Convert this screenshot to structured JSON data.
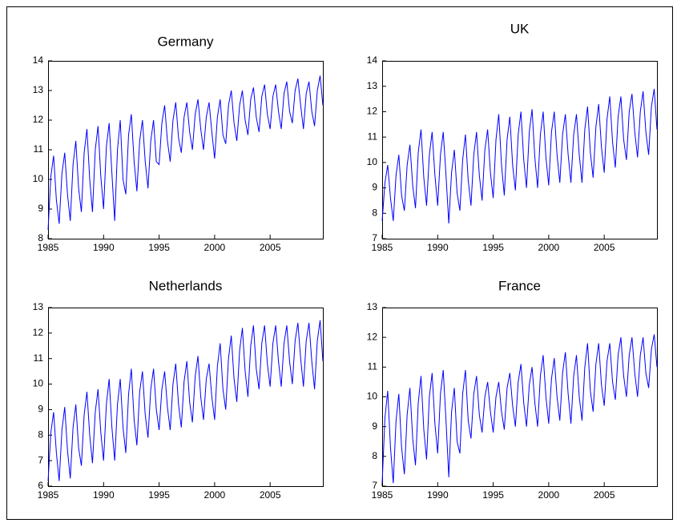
{
  "chart_data": [
    {
      "type": "line",
      "title": "Germany",
      "color": "#0000ff",
      "x": [
        1985,
        1985.25,
        1985.5,
        1985.75,
        1986,
        1986.25,
        1986.5,
        1986.75,
        1987,
        1987.25,
        1987.5,
        1987.75,
        1988,
        1988.25,
        1988.5,
        1988.75,
        1989,
        1989.25,
        1989.5,
        1989.75,
        1990,
        1990.25,
        1990.5,
        1990.75,
        1991,
        1991.25,
        1991.5,
        1991.75,
        1992,
        1992.25,
        1992.5,
        1992.75,
        1993,
        1993.25,
        1993.5,
        1993.75,
        1994,
        1994.25,
        1994.5,
        1994.75,
        1995,
        1995.25,
        1995.5,
        1995.75,
        1996,
        1996.25,
        1996.5,
        1996.75,
        1997,
        1997.25,
        1997.5,
        1997.75,
        1998,
        1998.25,
        1998.5,
        1998.75,
        1999,
        1999.25,
        1999.5,
        1999.75,
        2000,
        2000.25,
        2000.5,
        2000.75,
        2001,
        2001.25,
        2001.5,
        2001.75,
        2002,
        2002.25,
        2002.5,
        2002.75,
        2003,
        2003.25,
        2003.5,
        2003.75,
        2004,
        2004.25,
        2004.5,
        2004.75,
        2005,
        2005.25,
        2005.5,
        2005.75,
        2006,
        2006.25,
        2006.5,
        2006.75,
        2007,
        2007.25,
        2007.5,
        2007.75,
        2008,
        2008.25,
        2008.5,
        2008.75,
        2009,
        2009.25,
        2009.5,
        2009.75
      ],
      "values": [
        8.3,
        10.1,
        10.8,
        9.3,
        8.5,
        10.2,
        10.9,
        9.5,
        8.6,
        10.5,
        11.3,
        9.7,
        8.9,
        10.9,
        11.7,
        10.0,
        8.9,
        11.0,
        11.8,
        10.1,
        9.0,
        11.1,
        11.9,
        10.2,
        8.6,
        11.0,
        12.0,
        10.0,
        9.5,
        11.5,
        12.2,
        10.6,
        9.6,
        11.3,
        12.0,
        10.6,
        9.7,
        11.3,
        12.0,
        10.6,
        10.5,
        11.9,
        12.5,
        11.3,
        10.6,
        12.0,
        12.6,
        11.4,
        10.9,
        12.1,
        12.6,
        11.6,
        11.0,
        12.2,
        12.7,
        11.7,
        11.0,
        12.1,
        12.6,
        11.6,
        10.7,
        12.1,
        12.7,
        11.5,
        11.2,
        12.5,
        13.0,
        11.9,
        11.3,
        12.5,
        13.0,
        12.0,
        11.5,
        12.7,
        13.1,
        12.1,
        11.6,
        12.8,
        13.2,
        12.2,
        11.7,
        12.8,
        13.2,
        12.3,
        11.7,
        12.9,
        13.3,
        12.3,
        11.9,
        13.0,
        13.4,
        12.5,
        11.7,
        12.9,
        13.3,
        12.3,
        11.8,
        13.0,
        13.5,
        12.5
      ],
      "xlim": [
        1985,
        2009.75
      ],
      "xticks": [
        1985,
        1990,
        1995,
        2000,
        2005
      ],
      "ylim": [
        8,
        14
      ],
      "yticks": [
        8,
        9,
        10,
        11,
        12,
        13,
        14
      ]
    },
    {
      "type": "line",
      "title": "UK",
      "color": "#0000ff",
      "x": [
        1985,
        1985.25,
        1985.5,
        1985.75,
        1986,
        1986.25,
        1986.5,
        1986.75,
        1987,
        1987.25,
        1987.5,
        1987.75,
        1988,
        1988.25,
        1988.5,
        1988.75,
        1989,
        1989.25,
        1989.5,
        1989.75,
        1990,
        1990.25,
        1990.5,
        1990.75,
        1991,
        1991.25,
        1991.5,
        1991.75,
        1992,
        1992.25,
        1992.5,
        1992.75,
        1993,
        1993.25,
        1993.5,
        1993.75,
        1994,
        1994.25,
        1994.5,
        1994.75,
        1995,
        1995.25,
        1995.5,
        1995.75,
        1996,
        1996.25,
        1996.5,
        1996.75,
        1997,
        1997.25,
        1997.5,
        1997.75,
        1998,
        1998.25,
        1998.5,
        1998.75,
        1999,
        1999.25,
        1999.5,
        1999.75,
        2000,
        2000.25,
        2000.5,
        2000.75,
        2001,
        2001.25,
        2001.5,
        2001.75,
        2002,
        2002.25,
        2002.5,
        2002.75,
        2003,
        2003.25,
        2003.5,
        2003.75,
        2004,
        2004.25,
        2004.5,
        2004.75,
        2005,
        2005.25,
        2005.5,
        2005.75,
        2006,
        2006.25,
        2006.5,
        2006.75,
        2007,
        2007.25,
        2007.5,
        2007.75,
        2008,
        2008.25,
        2008.5,
        2008.75,
        2009,
        2009.25,
        2009.5,
        2009.75
      ],
      "values": [
        7.7,
        9.2,
        9.9,
        8.6,
        7.7,
        9.5,
        10.3,
        8.7,
        8.1,
        9.9,
        10.7,
        9.1,
        8.2,
        10.4,
        11.3,
        9.4,
        8.3,
        10.3,
        11.2,
        9.5,
        8.3,
        10.3,
        11.2,
        9.5,
        7.6,
        9.6,
        10.5,
        8.8,
        8.1,
        10.1,
        11.1,
        9.3,
        8.3,
        10.3,
        11.2,
        9.5,
        8.5,
        10.5,
        11.3,
        9.6,
        8.6,
        10.9,
        11.9,
        9.9,
        8.7,
        10.9,
        11.8,
        9.9,
        8.9,
        11.1,
        12.0,
        10.1,
        9.0,
        11.2,
        12.1,
        10.2,
        9.0,
        11.1,
        12.0,
        10.2,
        9.1,
        11.2,
        12.0,
        10.3,
        9.2,
        11.1,
        11.9,
        10.3,
        9.2,
        11.1,
        11.9,
        10.3,
        9.2,
        11.3,
        12.2,
        10.4,
        9.4,
        11.4,
        12.3,
        10.6,
        9.6,
        11.7,
        12.6,
        10.8,
        9.8,
        11.8,
        12.6,
        10.9,
        10.1,
        12.0,
        12.7,
        11.2,
        10.2,
        12.0,
        12.8,
        11.2,
        10.3,
        12.2,
        12.9,
        11.3
      ],
      "xlim": [
        1985,
        2009.75
      ],
      "xticks": [
        1985,
        1990,
        1995,
        2000,
        2005
      ],
      "ylim": [
        7,
        14
      ],
      "yticks": [
        7,
        8,
        9,
        10,
        11,
        12,
        13,
        14
      ]
    },
    {
      "type": "line",
      "title": "Netherlands",
      "color": "#0000ff",
      "x": [
        1985,
        1985.25,
        1985.5,
        1985.75,
        1986,
        1986.25,
        1986.5,
        1986.75,
        1987,
        1987.25,
        1987.5,
        1987.75,
        1988,
        1988.25,
        1988.5,
        1988.75,
        1989,
        1989.25,
        1989.5,
        1989.75,
        1990,
        1990.25,
        1990.5,
        1990.75,
        1991,
        1991.25,
        1991.5,
        1991.75,
        1992,
        1992.25,
        1992.5,
        1992.75,
        1993,
        1993.25,
        1993.5,
        1993.75,
        1994,
        1994.25,
        1994.5,
        1994.75,
        1995,
        1995.25,
        1995.5,
        1995.75,
        1996,
        1996.25,
        1996.5,
        1996.75,
        1997,
        1997.25,
        1997.5,
        1997.75,
        1998,
        1998.25,
        1998.5,
        1998.75,
        1999,
        1999.25,
        1999.5,
        1999.75,
        2000,
        2000.25,
        2000.5,
        2000.75,
        2001,
        2001.25,
        2001.5,
        2001.75,
        2002,
        2002.25,
        2002.5,
        2002.75,
        2003,
        2003.25,
        2003.5,
        2003.75,
        2004,
        2004.25,
        2004.5,
        2004.75,
        2005,
        2005.25,
        2005.5,
        2005.75,
        2006,
        2006.25,
        2006.5,
        2006.75,
        2007,
        2007.25,
        2007.5,
        2007.75,
        2008,
        2008.25,
        2008.5,
        2008.75,
        2009,
        2009.25,
        2009.5,
        2009.75
      ],
      "values": [
        6.2,
        8.1,
        8.9,
        7.3,
        6.2,
        8.2,
        9.1,
        7.4,
        6.3,
        8.3,
        9.2,
        7.5,
        6.8,
        8.8,
        9.7,
        8.0,
        6.9,
        8.9,
        9.8,
        8.1,
        7.0,
        9.2,
        10.2,
        8.3,
        7.0,
        9.2,
        10.2,
        8.3,
        7.3,
        9.6,
        10.6,
        8.6,
        7.6,
        9.7,
        10.5,
        8.8,
        7.9,
        9.8,
        10.6,
        9.0,
        8.2,
        9.8,
        10.5,
        9.1,
        8.2,
        10.0,
        10.8,
        9.2,
        8.3,
        10.1,
        10.9,
        9.3,
        8.5,
        10.3,
        11.1,
        9.5,
        8.6,
        10.2,
        10.8,
        9.5,
        8.6,
        10.7,
        11.6,
        9.8,
        9.0,
        11.0,
        11.9,
        10.2,
        9.3,
        11.3,
        12.2,
        10.5,
        9.5,
        11.5,
        12.3,
        10.6,
        9.8,
        11.6,
        12.3,
        10.8,
        9.9,
        11.6,
        12.3,
        10.9,
        9.9,
        11.6,
        12.3,
        10.9,
        10.0,
        11.7,
        12.4,
        11.0,
        9.9,
        11.7,
        12.4,
        10.9,
        9.8,
        11.7,
        12.5,
        10.9
      ],
      "xlim": [
        1985,
        2009.75
      ],
      "xticks": [
        1985,
        1990,
        1995,
        2000,
        2005
      ],
      "ylim": [
        6,
        13
      ],
      "yticks": [
        6,
        7,
        8,
        9,
        10,
        11,
        12,
        13
      ]
    },
    {
      "type": "line",
      "title": "France",
      "color": "#0000ff",
      "x": [
        1985,
        1985.25,
        1985.5,
        1985.75,
        1986,
        1986.25,
        1986.5,
        1986.75,
        1987,
        1987.25,
        1987.5,
        1987.75,
        1988,
        1988.25,
        1988.5,
        1988.75,
        1989,
        1989.25,
        1989.5,
        1989.75,
        1990,
        1990.25,
        1990.5,
        1990.75,
        1991,
        1991.25,
        1991.5,
        1991.75,
        1992,
        1992.25,
        1992.5,
        1992.75,
        1993,
        1993.25,
        1993.5,
        1993.75,
        1994,
        1994.25,
        1994.5,
        1994.75,
        1995,
        1995.25,
        1995.5,
        1995.75,
        1996,
        1996.25,
        1996.5,
        1996.75,
        1997,
        1997.25,
        1997.5,
        1997.75,
        1998,
        1998.25,
        1998.5,
        1998.75,
        1999,
        1999.25,
        1999.5,
        1999.75,
        2000,
        2000.25,
        2000.5,
        2000.75,
        2001,
        2001.25,
        2001.5,
        2001.75,
        2002,
        2002.25,
        2002.5,
        2002.75,
        2003,
        2003.25,
        2003.5,
        2003.75,
        2004,
        2004.25,
        2004.5,
        2004.75,
        2005,
        2005.25,
        2005.5,
        2005.75,
        2006,
        2006.25,
        2006.5,
        2006.75,
        2007,
        2007.25,
        2007.5,
        2007.75,
        2008,
        2008.25,
        2008.5,
        2008.75,
        2009,
        2009.25,
        2009.5,
        2009.75
      ],
      "values": [
        7.1,
        9.3,
        10.2,
        8.3,
        7.1,
        9.2,
        10.1,
        8.3,
        7.4,
        9.4,
        10.3,
        8.6,
        7.7,
        9.8,
        10.7,
        8.9,
        7.9,
        10.0,
        10.8,
        9.1,
        8.1,
        10.1,
        10.9,
        9.2,
        7.3,
        9.5,
        10.3,
        8.5,
        8.1,
        10.1,
        10.9,
        9.2,
        8.6,
        10.1,
        10.7,
        9.4,
        8.8,
        10.0,
        10.5,
        9.5,
        8.8,
        10.0,
        10.5,
        9.5,
        8.9,
        10.3,
        10.8,
        9.7,
        9.0,
        10.5,
        11.1,
        9.8,
        9.0,
        10.4,
        11.0,
        9.8,
        9.0,
        10.7,
        11.4,
        10.0,
        9.1,
        10.6,
        11.3,
        10.0,
        9.2,
        10.8,
        11.5,
        10.1,
        9.1,
        10.7,
        11.4,
        10.0,
        9.2,
        11.0,
        11.8,
        10.2,
        9.5,
        11.1,
        11.8,
        10.4,
        9.7,
        11.2,
        11.8,
        10.5,
        9.9,
        11.4,
        12.0,
        10.7,
        10.0,
        11.4,
        12.0,
        10.8,
        10.0,
        11.4,
        12.0,
        10.8,
        10.3,
        11.6,
        12.1,
        11.0
      ],
      "xlim": [
        1985,
        2009.75
      ],
      "xticks": [
        1985,
        1990,
        1995,
        2000,
        2005
      ],
      "ylim": [
        7,
        13
      ],
      "yticks": [
        7,
        8,
        9,
        10,
        11,
        12,
        13
      ]
    }
  ]
}
